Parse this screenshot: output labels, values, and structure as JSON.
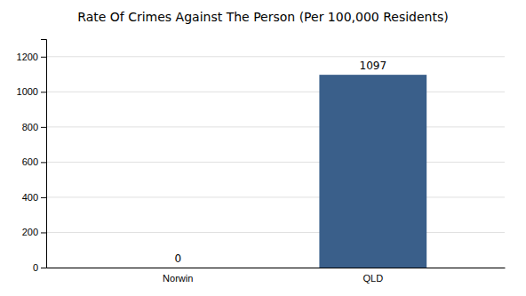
{
  "chart_data": {
    "type": "bar",
    "title": "Rate Of Crimes Against The Person (Per 100,000 Residents)",
    "categories": [
      "Norwin",
      "QLD"
    ],
    "values": [
      0,
      1097
    ],
    "color": "#3a5f8a",
    "ylim": [
      0,
      1300
    ],
    "yticks": [
      0,
      200,
      400,
      600,
      800,
      1000,
      1200
    ],
    "grid": true,
    "data_labels": true
  }
}
